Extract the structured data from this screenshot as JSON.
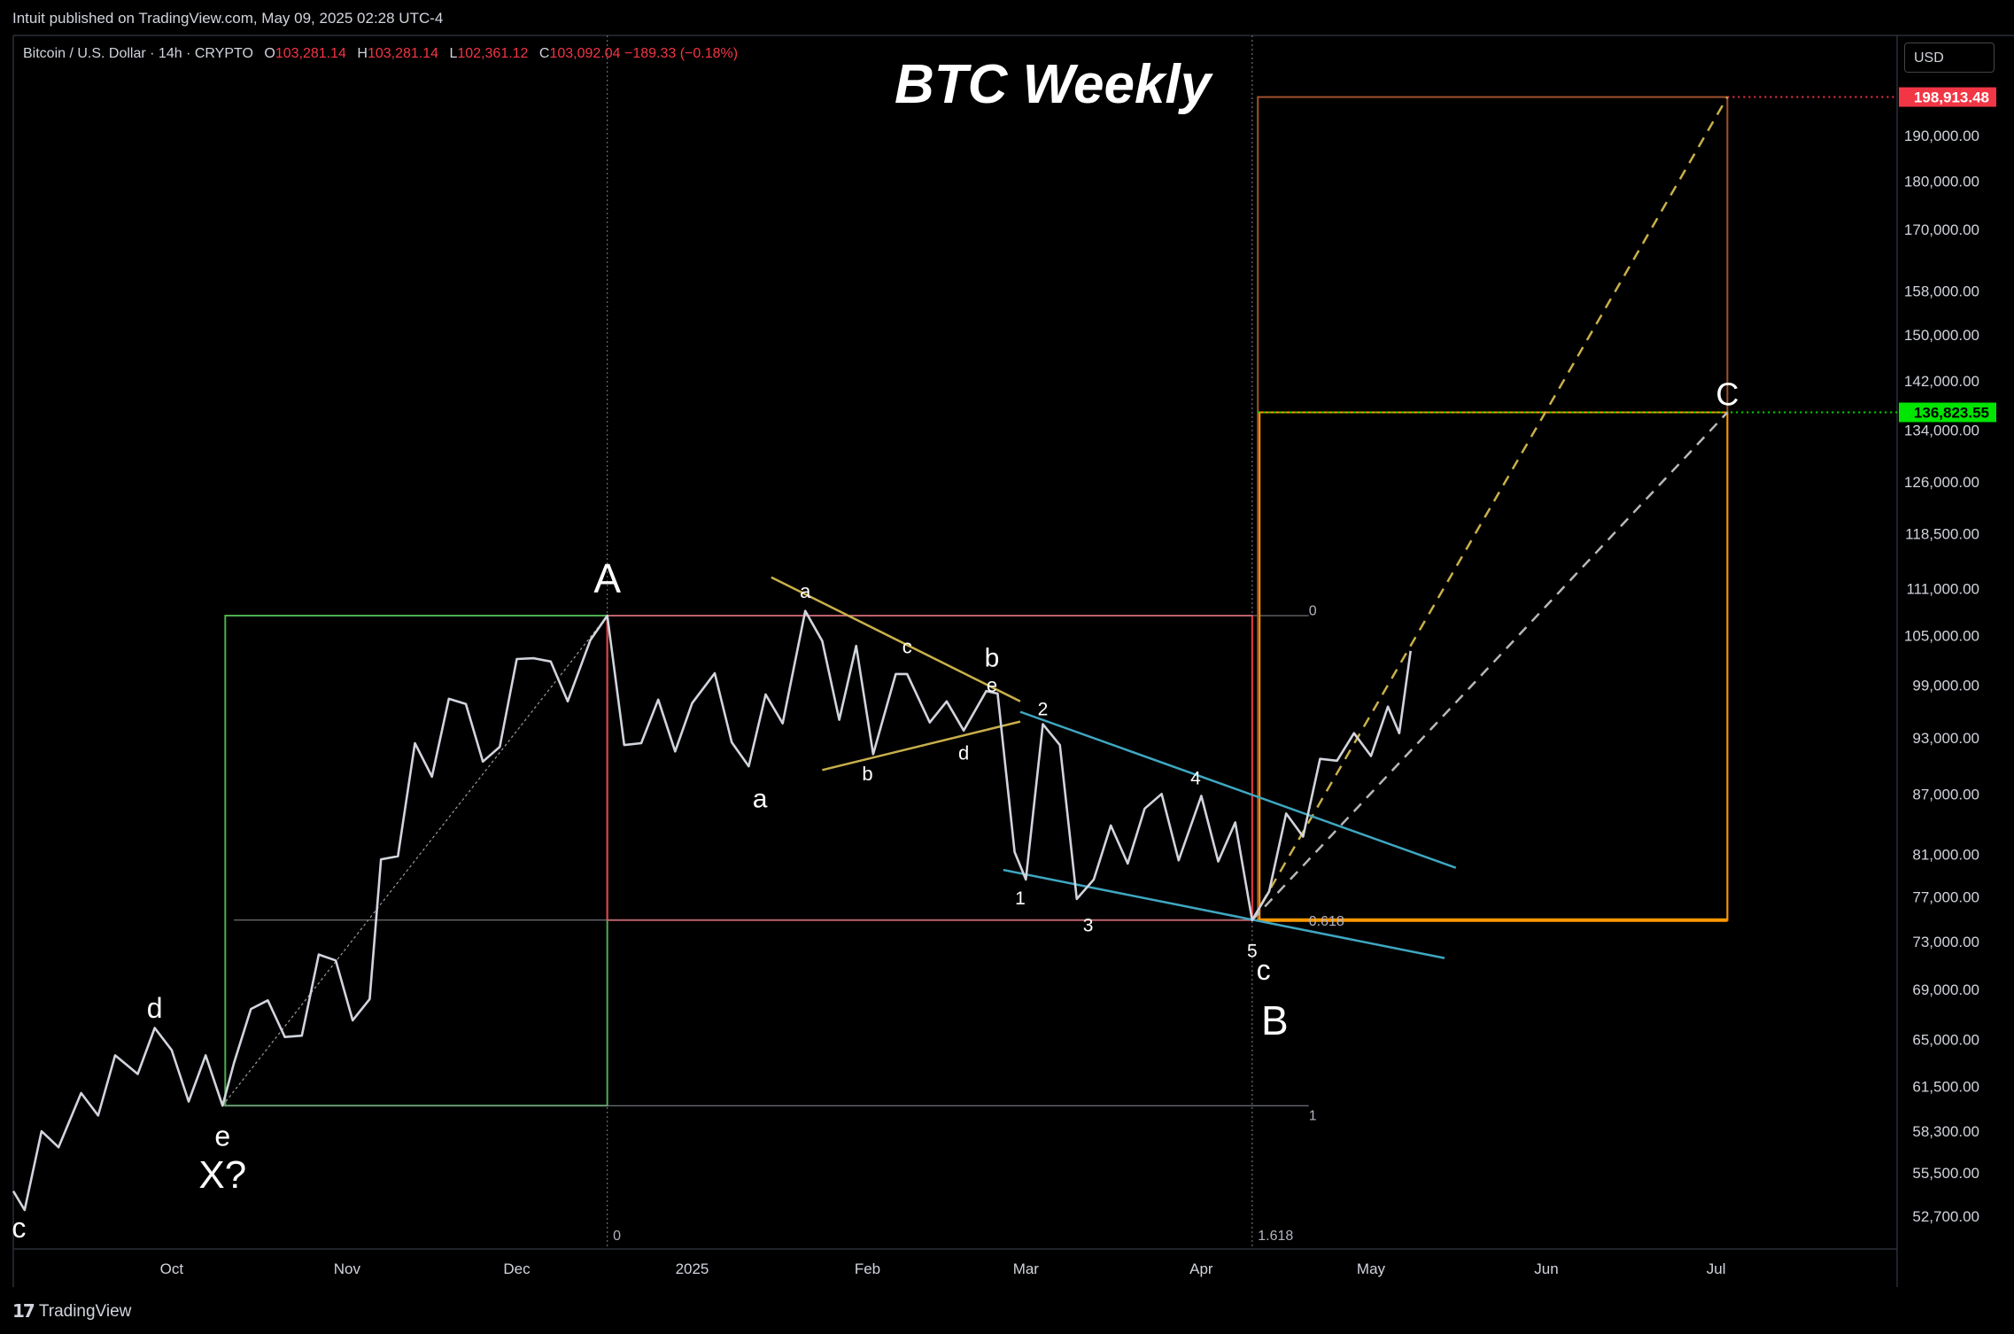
{
  "window": {
    "publisher_line": "Intuit published on TradingView.com, May 09, 2025 02:28 UTC-4",
    "brand": "TradingView",
    "currency_button": "USD"
  },
  "symbol": {
    "name": "Bitcoin / U.S. Dollar · 14h · CRYPTO",
    "open_key": "O",
    "open": "103,281.14",
    "high_key": "H",
    "high": "103,281.14",
    "low_key": "L",
    "low": "102,361.12",
    "close_key": "C",
    "close": "103,092.04",
    "change": "−189.33 (−0.18%)"
  },
  "colors": {
    "background": "#000000",
    "price_line": "#d1d4dc",
    "green_box": "#4caf50",
    "red_box": "#f23645",
    "orange_box": "#ff9800",
    "triangle_line": "#c9b04a",
    "wedge_line": "#3fa7c2",
    "label_red": "#f23645",
    "label_green": "#00e600"
  },
  "chart_data": {
    "type": "line",
    "title": "BTC Weekly",
    "scale": "log",
    "ylim": [
      50700,
      214000
    ],
    "xlim": [
      "2024-09-03",
      "2025-08-02"
    ],
    "y_ticks": [
      "52,700.00",
      "55,500.00",
      "58,300.00",
      "61,500.00",
      "65,000.00",
      "69,000.00",
      "73,000.00",
      "77,000.00",
      "81,000.00",
      "87,000.00",
      "93,000.00",
      "99,000.00",
      "105,000.00",
      "111,000.00",
      "118,500.00",
      "126,000.00",
      "134,000.00",
      "142,000.00",
      "150,000.00",
      "158,000.00",
      "170,000.00",
      "180,000.00",
      "190,000.00"
    ],
    "x_ticks": [
      {
        "label": "Oct",
        "date": "2024-10-01"
      },
      {
        "label": "Nov",
        "date": "2024-11-01"
      },
      {
        "label": "Dec",
        "date": "2024-12-01"
      },
      {
        "label": "2025",
        "date": "2025-01-01"
      },
      {
        "label": "Feb",
        "date": "2025-02-01"
      },
      {
        "label": "Mar",
        "date": "2025-03-01"
      },
      {
        "label": "Apr",
        "date": "2025-04-01"
      },
      {
        "label": "May",
        "date": "2025-05-01"
      },
      {
        "label": "Jun",
        "date": "2025-06-01"
      },
      {
        "label": "Jul",
        "date": "2025-07-01"
      }
    ],
    "price_labels": [
      {
        "value": "198,913.48",
        "price": 198913.48,
        "color": "#f23645"
      },
      {
        "value": "136,823.55",
        "price": 136823.55,
        "color": "#00e600"
      }
    ],
    "series": [
      {
        "points": [
          [
            "2024-09-03",
            54300
          ],
          [
            "2024-09-05",
            53100
          ],
          [
            "2024-09-08",
            58300
          ],
          [
            "2024-09-11",
            57200
          ],
          [
            "2024-09-15",
            61000
          ],
          [
            "2024-09-18",
            59400
          ],
          [
            "2024-09-21",
            63800
          ],
          [
            "2024-09-25",
            62400
          ],
          [
            "2024-09-28",
            65900
          ],
          [
            "2024-10-01",
            64200
          ],
          [
            "2024-10-04",
            60400
          ],
          [
            "2024-10-07",
            63800
          ],
          [
            "2024-10-10",
            60100
          ],
          [
            "2024-10-12",
            63200
          ],
          [
            "2024-10-15",
            67400
          ],
          [
            "2024-10-18",
            68100
          ],
          [
            "2024-10-21",
            65200
          ],
          [
            "2024-10-24",
            65300
          ],
          [
            "2024-10-27",
            71900
          ],
          [
            "2024-10-30",
            71400
          ],
          [
            "2024-11-02",
            66500
          ],
          [
            "2024-11-05",
            68200
          ],
          [
            "2024-11-07",
            80500
          ],
          [
            "2024-11-10",
            80800
          ],
          [
            "2024-11-13",
            92400
          ],
          [
            "2024-11-16",
            88800
          ],
          [
            "2024-11-19",
            97400
          ],
          [
            "2024-11-22",
            96800
          ],
          [
            "2024-11-25",
            90400
          ],
          [
            "2024-11-28",
            92000
          ],
          [
            "2024-12-01",
            102100
          ],
          [
            "2024-12-04",
            102200
          ],
          [
            "2024-12-07",
            101800
          ],
          [
            "2024-12-10",
            97100
          ],
          [
            "2024-12-14",
            104400
          ],
          [
            "2024-12-17",
            107500
          ],
          [
            "2024-12-20",
            92200
          ],
          [
            "2024-12-23",
            92400
          ],
          [
            "2024-12-26",
            97300
          ],
          [
            "2024-12-29",
            91500
          ],
          [
            "2025-01-01",
            96900
          ],
          [
            "2025-01-05",
            100400
          ],
          [
            "2025-01-08",
            92500
          ],
          [
            "2025-01-11",
            89900
          ],
          [
            "2025-01-14",
            97900
          ],
          [
            "2025-01-17",
            94600
          ],
          [
            "2025-01-21",
            108100
          ],
          [
            "2025-01-24",
            104300
          ],
          [
            "2025-01-27",
            95000
          ],
          [
            "2025-01-30",
            103700
          ],
          [
            "2025-02-02",
            91200
          ],
          [
            "2025-02-06",
            100300
          ],
          [
            "2025-02-08",
            100300
          ],
          [
            "2025-02-12",
            94700
          ],
          [
            "2025-02-15",
            97100
          ],
          [
            "2025-02-18",
            93800
          ],
          [
            "2025-02-22",
            98300
          ],
          [
            "2025-02-24",
            98000
          ],
          [
            "2025-02-27",
            81200
          ],
          [
            "2025-03-01",
            78600
          ],
          [
            "2025-03-04",
            94500
          ],
          [
            "2025-03-07",
            92200
          ],
          [
            "2025-03-10",
            76800
          ],
          [
            "2025-03-13",
            78600
          ],
          [
            "2025-03-16",
            83800
          ],
          [
            "2025-03-19",
            80100
          ],
          [
            "2025-03-22",
            85500
          ],
          [
            "2025-03-25",
            87000
          ],
          [
            "2025-03-28",
            80400
          ],
          [
            "2025-04-01",
            86800
          ],
          [
            "2025-04-04",
            80300
          ],
          [
            "2025-04-07",
            84100
          ],
          [
            "2025-04-10",
            74900
          ],
          [
            "2025-04-13",
            77500
          ],
          [
            "2025-04-16",
            85000
          ],
          [
            "2025-04-19",
            82700
          ],
          [
            "2025-04-22",
            90700
          ],
          [
            "2025-04-25",
            90500
          ],
          [
            "2025-04-28",
            93500
          ],
          [
            "2025-05-01",
            91000
          ],
          [
            "2025-05-04",
            96500
          ],
          [
            "2025-05-06",
            93500
          ],
          [
            "2025-05-08",
            103100
          ]
        ]
      }
    ],
    "annotations": [
      {
        "text": "BTC Weekly",
        "kind": "title"
      },
      {
        "text": "A",
        "date": "2024-12-17",
        "price": 110500,
        "size": 46
      },
      {
        "text": "B",
        "date": "2025-04-14",
        "price": 65400,
        "size": 46
      },
      {
        "text": "C",
        "date": "2025-07-03",
        "price": 138000,
        "size": 36
      },
      {
        "text": "X?",
        "date": "2024-10-10",
        "price": 54500,
        "size": 44
      },
      {
        "text": "e",
        "date": "2024-10-10",
        "price": 57300,
        "size": 32
      },
      {
        "text": "d",
        "date": "2024-09-28",
        "price": 66700,
        "size": 32
      },
      {
        "text": "c",
        "date": "2024-09-04",
        "price": 51400,
        "size": 32
      },
      {
        "text": "a",
        "date": "2025-01-13",
        "price": 85600,
        "size": 30
      },
      {
        "text": "b",
        "date": "2025-02-23",
        "price": 101200,
        "size": 30
      },
      {
        "text": "c",
        "date": "2025-04-12",
        "price": 69800,
        "size": 32
      },
      {
        "text": "a",
        "date": "2025-01-21",
        "price": 109800,
        "size": 22
      },
      {
        "text": "b",
        "date": "2025-02-01",
        "price": 88400,
        "size": 22
      },
      {
        "text": "c",
        "date": "2025-02-08",
        "price": 102800,
        "size": 22
      },
      {
        "text": "d",
        "date": "2025-02-18",
        "price": 90600,
        "size": 22
      },
      {
        "text": "e",
        "date": "2025-02-23",
        "price": 98200,
        "size": 22
      },
      {
        "text": "1",
        "date": "2025-02-28",
        "price": 76300,
        "size": 21
      },
      {
        "text": "2",
        "date": "2025-03-04",
        "price": 95500,
        "size": 21
      },
      {
        "text": "3",
        "date": "2025-03-12",
        "price": 73900,
        "size": 21
      },
      {
        "text": "4",
        "date": "2025-03-31",
        "price": 88000,
        "size": 21
      },
      {
        "text": "5",
        "date": "2025-04-10",
        "price": 71700,
        "size": 21
      }
    ],
    "fib_labels": [
      {
        "text": "0",
        "date": "2025-04-20",
        "price": 108100
      },
      {
        "text": "0.618",
        "date": "2025-04-20",
        "price": 74800
      },
      {
        "text": "1",
        "date": "2025-04-20",
        "price": 59400
      },
      {
        "text": "0",
        "date": "2024-12-18",
        "price": 51500
      },
      {
        "text": "1.618",
        "date": "2025-04-11",
        "price": 51500
      }
    ],
    "grid": false,
    "legend": "none"
  }
}
